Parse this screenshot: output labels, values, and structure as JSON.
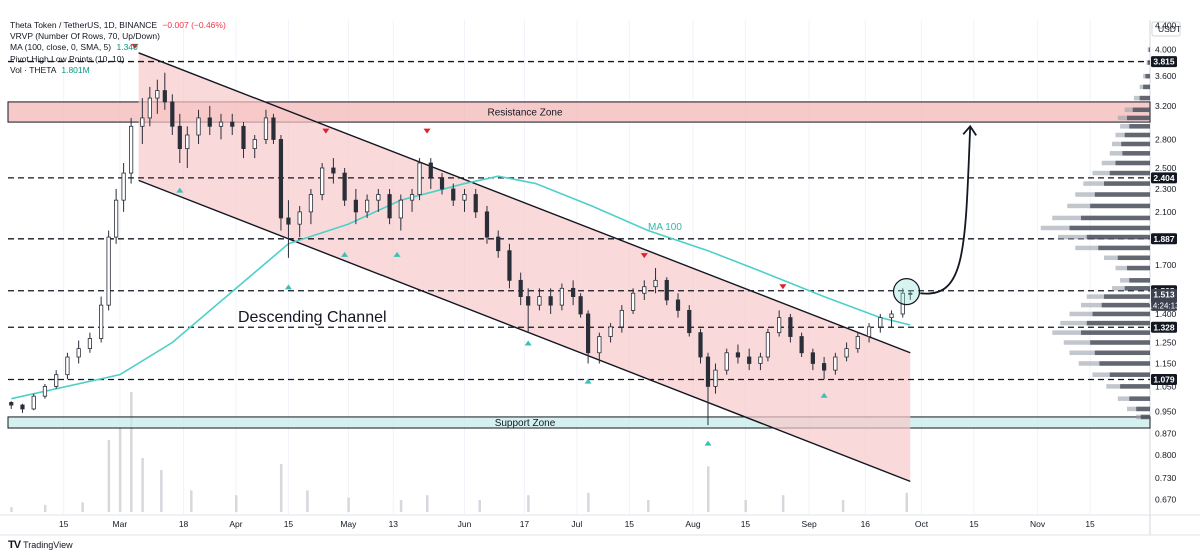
{
  "legend": {
    "symbol": "Theta Token / TetherUS, 1D, BINANCE",
    "change": "−0.007 (−0.46%)",
    "vrvp": "VRVP (Number Of Rows, 70, Up/Down)",
    "ma": "MA (100, close, 0, SMA, 5)",
    "ma_value": "1.340",
    "pivot": "Pivot High Low Points (10, 10)",
    "vol": "Vol · THETA",
    "vol_value": "1.801M"
  },
  "footer": {
    "brand": "TradingView"
  },
  "colors": {
    "channel_fill": "#f7c9c9",
    "resistance_fill": "#f4b4b4",
    "support_fill": "#c6ecea",
    "ma_line": "#4dd0c8",
    "candle_up": "#ffffff",
    "candle_down": "#2a2e39",
    "pivot_high": "#e0202b",
    "pivot_low": "#39c0b7"
  },
  "chart_data": {
    "type": "candlestick",
    "price_axis_unit": "USDT",
    "scale": "log",
    "ylim": [
      0.63,
      4.5
    ],
    "price_ticks": [
      "4.400",
      "4.000",
      "3.600",
      "3.200",
      "2.800",
      "2.500",
      "2.300",
      "2.100",
      "1.900",
      "1.700",
      "1.400",
      "1.250",
      "1.150",
      "1.050",
      "0.950",
      "0.870",
      "0.800",
      "0.730",
      "0.670"
    ],
    "time_ticks": [
      "15",
      "Mar",
      "18",
      "Apr",
      "15",
      "May",
      "13",
      "Jun",
      "17",
      "Jul",
      "15",
      "Aug",
      "15",
      "Sep",
      "16",
      "Oct",
      "15",
      "Nov",
      "15"
    ],
    "price_labels": [
      {
        "value": 3.815,
        "text": "3.815",
        "style": "dark"
      },
      {
        "value": 2.404,
        "text": "2.404",
        "style": "dark"
      },
      {
        "value": 1.887,
        "text": "1.887",
        "style": "dark"
      },
      {
        "value": 1.535,
        "text": "1.535",
        "style": "dark"
      },
      {
        "value": 1.513,
        "text": "1.513",
        "style": "gray",
        "countdown": "14:24:13"
      },
      {
        "value": 1.328,
        "text": "1.328",
        "style": "dark"
      },
      {
        "value": 1.079,
        "text": "1.079",
        "style": "dark"
      }
    ],
    "horizontal_levels": [
      3.815,
      2.404,
      1.887,
      1.535,
      1.328,
      1.079
    ],
    "zones": [
      {
        "name": "Resistance Zone",
        "from": 3.0,
        "to": 3.25
      },
      {
        "name": "Support Zone",
        "from": 0.89,
        "to": 0.93
      }
    ],
    "annotations": {
      "channel_label": "Descending Channel",
      "ma_label": "MA 100"
    },
    "channel": {
      "upper": [
        {
          "date": "2024-03-06",
          "price": 3.95
        },
        {
          "date": "2024-09-28",
          "price": 1.2
        }
      ],
      "lower": [
        {
          "date": "2024-03-06",
          "price": 2.38
        },
        {
          "date": "2024-09-28",
          "price": 0.72
        }
      ]
    },
    "ohlc": [
      [
        "2024-02-01",
        0.985,
        0.99,
        0.96,
        0.975
      ],
      [
        "2024-02-04",
        0.975,
        0.98,
        0.945,
        0.96
      ],
      [
        "2024-02-07",
        0.96,
        1.02,
        0.955,
        1.01
      ],
      [
        "2024-02-10",
        1.01,
        1.06,
        1.0,
        1.05
      ],
      [
        "2024-02-13",
        1.05,
        1.12,
        1.04,
        1.1
      ],
      [
        "2024-02-16",
        1.1,
        1.2,
        1.08,
        1.18
      ],
      [
        "2024-02-19",
        1.18,
        1.26,
        1.15,
        1.22
      ],
      [
        "2024-02-22",
        1.22,
        1.3,
        1.2,
        1.27
      ],
      [
        "2024-02-25",
        1.27,
        1.5,
        1.25,
        1.45
      ],
      [
        "2024-02-27",
        1.45,
        1.95,
        1.42,
        1.9
      ],
      [
        "2024-02-29",
        1.9,
        2.3,
        1.85,
        2.2
      ],
      [
        "2024-03-02",
        2.2,
        2.55,
        2.1,
        2.45
      ],
      [
        "2024-03-04",
        2.45,
        3.05,
        2.35,
        2.95
      ],
      [
        "2024-03-07",
        2.95,
        3.3,
        2.75,
        3.05
      ],
      [
        "2024-03-09",
        3.05,
        3.45,
        2.95,
        3.3
      ],
      [
        "2024-03-11",
        3.3,
        3.55,
        3.1,
        3.4
      ],
      [
        "2024-03-13",
        3.4,
        3.65,
        3.15,
        3.25
      ],
      [
        "2024-03-15",
        3.25,
        3.35,
        2.85,
        2.95
      ],
      [
        "2024-03-17",
        2.95,
        3.1,
        2.55,
        2.7
      ],
      [
        "2024-03-19",
        2.7,
        2.95,
        2.5,
        2.85
      ],
      [
        "2024-03-22",
        2.85,
        3.15,
        2.75,
        3.05
      ],
      [
        "2024-03-25",
        3.05,
        3.2,
        2.85,
        2.95
      ],
      [
        "2024-03-28",
        2.95,
        3.1,
        2.8,
        3.0
      ],
      [
        "2024-03-31",
        3.0,
        3.1,
        2.85,
        2.95
      ],
      [
        "2024-04-03",
        2.95,
        3.0,
        2.6,
        2.7
      ],
      [
        "2024-04-06",
        2.7,
        2.85,
        2.6,
        2.8
      ],
      [
        "2024-04-09",
        2.8,
        3.15,
        2.75,
        3.05
      ],
      [
        "2024-04-11",
        3.05,
        3.1,
        2.75,
        2.8
      ],
      [
        "2024-04-13",
        2.8,
        2.85,
        1.95,
        2.05
      ],
      [
        "2024-04-15",
        2.05,
        2.2,
        1.75,
        2.0
      ],
      [
        "2024-04-18",
        2.0,
        2.15,
        1.9,
        2.1
      ],
      [
        "2024-04-21",
        2.1,
        2.3,
        2.0,
        2.25
      ],
      [
        "2024-04-24",
        2.25,
        2.55,
        2.2,
        2.5
      ],
      [
        "2024-04-27",
        2.5,
        2.6,
        2.35,
        2.45
      ],
      [
        "2024-04-30",
        2.45,
        2.5,
        2.15,
        2.2
      ],
      [
        "2024-05-03",
        2.2,
        2.3,
        2.0,
        2.1
      ],
      [
        "2024-05-06",
        2.1,
        2.25,
        2.05,
        2.2
      ],
      [
        "2024-05-09",
        2.2,
        2.3,
        2.1,
        2.25
      ],
      [
        "2024-05-12",
        2.25,
        2.3,
        2.0,
        2.05
      ],
      [
        "2024-05-15",
        2.05,
        2.25,
        1.95,
        2.2
      ],
      [
        "2024-05-18",
        2.2,
        2.3,
        2.1,
        2.25
      ],
      [
        "2024-05-20",
        2.25,
        2.6,
        2.2,
        2.55
      ],
      [
        "2024-05-23",
        2.55,
        2.6,
        2.3,
        2.4
      ],
      [
        "2024-05-26",
        2.4,
        2.45,
        2.25,
        2.3
      ],
      [
        "2024-05-29",
        2.3,
        2.35,
        2.15,
        2.2
      ],
      [
        "2024-06-01",
        2.2,
        2.3,
        2.1,
        2.25
      ],
      [
        "2024-06-04",
        2.25,
        2.3,
        2.05,
        2.1
      ],
      [
        "2024-06-07",
        2.1,
        2.15,
        1.85,
        1.9
      ],
      [
        "2024-06-10",
        1.9,
        1.95,
        1.75,
        1.8
      ],
      [
        "2024-06-13",
        1.8,
        1.85,
        1.55,
        1.6
      ],
      [
        "2024-06-16",
        1.6,
        1.65,
        1.45,
        1.5
      ],
      [
        "2024-06-18",
        1.5,
        1.55,
        1.3,
        1.45
      ],
      [
        "2024-06-21",
        1.45,
        1.55,
        1.42,
        1.5
      ],
      [
        "2024-06-24",
        1.5,
        1.55,
        1.4,
        1.45
      ],
      [
        "2024-06-27",
        1.45,
        1.58,
        1.42,
        1.55
      ],
      [
        "2024-06-30",
        1.55,
        1.6,
        1.45,
        1.5
      ],
      [
        "2024-07-02",
        1.5,
        1.52,
        1.38,
        1.4
      ],
      [
        "2024-07-04",
        1.4,
        1.42,
        1.15,
        1.2
      ],
      [
        "2024-07-07",
        1.2,
        1.3,
        1.15,
        1.28
      ],
      [
        "2024-07-10",
        1.28,
        1.35,
        1.25,
        1.33
      ],
      [
        "2024-07-13",
        1.33,
        1.45,
        1.3,
        1.42
      ],
      [
        "2024-07-16",
        1.42,
        1.55,
        1.4,
        1.52
      ],
      [
        "2024-07-19",
        1.52,
        1.6,
        1.48,
        1.56
      ],
      [
        "2024-07-22",
        1.56,
        1.68,
        1.52,
        1.6
      ],
      [
        "2024-07-25",
        1.6,
        1.62,
        1.45,
        1.48
      ],
      [
        "2024-07-28",
        1.48,
        1.52,
        1.38,
        1.42
      ],
      [
        "2024-07-31",
        1.42,
        1.45,
        1.28,
        1.3
      ],
      [
        "2024-08-03",
        1.3,
        1.32,
        1.15,
        1.18
      ],
      [
        "2024-08-05",
        1.18,
        1.2,
        0.9,
        1.05
      ],
      [
        "2024-08-07",
        1.05,
        1.15,
        1.02,
        1.12
      ],
      [
        "2024-08-10",
        1.12,
        1.22,
        1.1,
        1.2
      ],
      [
        "2024-08-13",
        1.2,
        1.24,
        1.15,
        1.18
      ],
      [
        "2024-08-16",
        1.18,
        1.22,
        1.12,
        1.15
      ],
      [
        "2024-08-19",
        1.15,
        1.2,
        1.12,
        1.18
      ],
      [
        "2024-08-21",
        1.18,
        1.32,
        1.16,
        1.3
      ],
      [
        "2024-08-24",
        1.3,
        1.42,
        1.28,
        1.38
      ],
      [
        "2024-08-27",
        1.38,
        1.4,
        1.25,
        1.28
      ],
      [
        "2024-08-30",
        1.28,
        1.3,
        1.18,
        1.2
      ],
      [
        "2024-09-02",
        1.2,
        1.22,
        1.12,
        1.15
      ],
      [
        "2024-09-05",
        1.15,
        1.18,
        1.08,
        1.12
      ],
      [
        "2024-09-08",
        1.12,
        1.2,
        1.1,
        1.18
      ],
      [
        "2024-09-11",
        1.18,
        1.25,
        1.16,
        1.22
      ],
      [
        "2024-09-14",
        1.22,
        1.3,
        1.2,
        1.28
      ],
      [
        "2024-09-17",
        1.28,
        1.35,
        1.25,
        1.33
      ],
      [
        "2024-09-20",
        1.33,
        1.4,
        1.3,
        1.38
      ],
      [
        "2024-09-23",
        1.38,
        1.42,
        1.33,
        1.4
      ],
      [
        "2024-09-26",
        1.4,
        1.55,
        1.38,
        1.52
      ],
      [
        "2024-09-28",
        1.52,
        1.54,
        1.48,
        1.513
      ]
    ],
    "ma100": [
      [
        "2024-02-01",
        1.0
      ],
      [
        "2024-03-01",
        1.1
      ],
      [
        "2024-03-15",
        1.25
      ],
      [
        "2024-04-01",
        1.55
      ],
      [
        "2024-04-15",
        1.85
      ],
      [
        "2024-05-01",
        2.0
      ],
      [
        "2024-05-15",
        2.2
      ],
      [
        "2024-06-01",
        2.35
      ],
      [
        "2024-06-10",
        2.42
      ],
      [
        "2024-06-20",
        2.35
      ],
      [
        "2024-07-05",
        2.15
      ],
      [
        "2024-07-20",
        1.95
      ],
      [
        "2024-08-05",
        1.8
      ],
      [
        "2024-08-20",
        1.65
      ],
      [
        "2024-09-05",
        1.5
      ],
      [
        "2024-09-20",
        1.38
      ],
      [
        "2024-09-28",
        1.34
      ]
    ],
    "pivot_highs": [
      {
        "date": "2024-03-05",
        "price": 3.95
      },
      {
        "date": "2024-04-25",
        "price": 2.82
      },
      {
        "date": "2024-05-22",
        "price": 2.82
      },
      {
        "date": "2024-07-19",
        "price": 1.72
      },
      {
        "date": "2024-08-25",
        "price": 1.52
      }
    ],
    "pivot_lows": [
      {
        "date": "2024-03-17",
        "price": 2.35
      },
      {
        "date": "2024-04-15",
        "price": 1.6
      },
      {
        "date": "2024-04-30",
        "price": 1.82
      },
      {
        "date": "2024-05-14",
        "price": 1.82
      },
      {
        "date": "2024-06-18",
        "price": 1.28
      },
      {
        "date": "2024-07-04",
        "price": 1.1
      },
      {
        "date": "2024-08-05",
        "price": 0.86
      },
      {
        "date": "2024-09-05",
        "price": 1.04
      }
    ],
    "projection": {
      "from": {
        "date": "2024-09-28",
        "price": 1.52
      },
      "to": {
        "date": "2024-10-14",
        "price": 2.95
      }
    },
    "highlight_circle": {
      "date": "2024-09-27",
      "price": 1.53
    },
    "volume_profile": [
      [
        4.0,
        2,
        1
      ],
      [
        3.8,
        3,
        2
      ],
      [
        3.6,
        6,
        4
      ],
      [
        3.45,
        9,
        6
      ],
      [
        3.3,
        14,
        9
      ],
      [
        3.15,
        22,
        15
      ],
      [
        3.05,
        28,
        20
      ],
      [
        2.95,
        26,
        18
      ],
      [
        2.85,
        30,
        22
      ],
      [
        2.75,
        33,
        25
      ],
      [
        2.65,
        35,
        24
      ],
      [
        2.55,
        42,
        30
      ],
      [
        2.45,
        50,
        35
      ],
      [
        2.35,
        58,
        40
      ],
      [
        2.25,
        65,
        48
      ],
      [
        2.15,
        72,
        52
      ],
      [
        2.05,
        85,
        60
      ],
      [
        1.97,
        95,
        70
      ],
      [
        1.9,
        80,
        55
      ],
      [
        1.82,
        65,
        45
      ],
      [
        1.75,
        40,
        28
      ],
      [
        1.68,
        30,
        20
      ],
      [
        1.6,
        26,
        18
      ],
      [
        1.55,
        33,
        22
      ],
      [
        1.5,
        55,
        40
      ],
      [
        1.45,
        60,
        42
      ],
      [
        1.4,
        70,
        50
      ],
      [
        1.35,
        78,
        55
      ],
      [
        1.3,
        85,
        60
      ],
      [
        1.25,
        75,
        52
      ],
      [
        1.2,
        70,
        48
      ],
      [
        1.15,
        62,
        44
      ],
      [
        1.1,
        50,
        35
      ],
      [
        1.05,
        38,
        26
      ],
      [
        1.0,
        28,
        18
      ],
      [
        0.96,
        20,
        12
      ],
      [
        0.93,
        12,
        8
      ]
    ],
    "volume": [
      [
        "2024-02-01",
        4
      ],
      [
        "2024-02-10",
        6
      ],
      [
        "2024-02-20",
        8
      ],
      [
        "2024-02-27",
        60
      ],
      [
        "2024-03-01",
        70
      ],
      [
        "2024-03-04",
        100
      ],
      [
        "2024-03-07",
        45
      ],
      [
        "2024-03-12",
        35
      ],
      [
        "2024-03-20",
        18
      ],
      [
        "2024-04-01",
        14
      ],
      [
        "2024-04-13",
        40
      ],
      [
        "2024-04-20",
        18
      ],
      [
        "2024-05-01",
        12
      ],
      [
        "2024-05-15",
        10
      ],
      [
        "2024-05-22",
        14
      ],
      [
        "2024-06-05",
        10
      ],
      [
        "2024-06-18",
        14
      ],
      [
        "2024-07-04",
        16
      ],
      [
        "2024-07-20",
        10
      ],
      [
        "2024-08-05",
        38
      ],
      [
        "2024-08-15",
        10
      ],
      [
        "2024-08-25",
        14
      ],
      [
        "2024-09-10",
        10
      ],
      [
        "2024-09-27",
        16
      ]
    ]
  }
}
